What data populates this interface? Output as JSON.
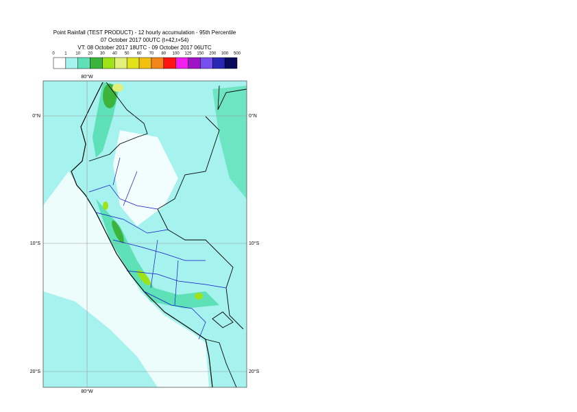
{
  "header": {
    "title": "Point Rainfall (TEST PRODUCT) - 12 hourly accumulation - 95th Percentile",
    "base_time": "07 October 2017 00UTC (t+42,t+54)",
    "valid_time": "VT: 08 October 2017 18UTC - 09 October 2017 06UTC"
  },
  "legend": {
    "labels": [
      "0",
      "1",
      "10",
      "20",
      "30",
      "40",
      "50",
      "60",
      "70",
      "80",
      "100",
      "125",
      "150",
      "200",
      "300",
      "500"
    ],
    "colors": [
      "#ffffff",
      "#a5f2ee",
      "#5fe1b8",
      "#3cb43c",
      "#9ee21a",
      "#e2f07a",
      "#e2e21a",
      "#f2c010",
      "#f2861a",
      "#ff1414",
      "#f01ef0",
      "#a014c8",
      "#7850f0",
      "#2828b4",
      "#0a0a5a"
    ]
  },
  "map": {
    "lon_label": "80°W",
    "lat_labels": [
      "0°N",
      "10°S",
      "20°S"
    ]
  }
}
